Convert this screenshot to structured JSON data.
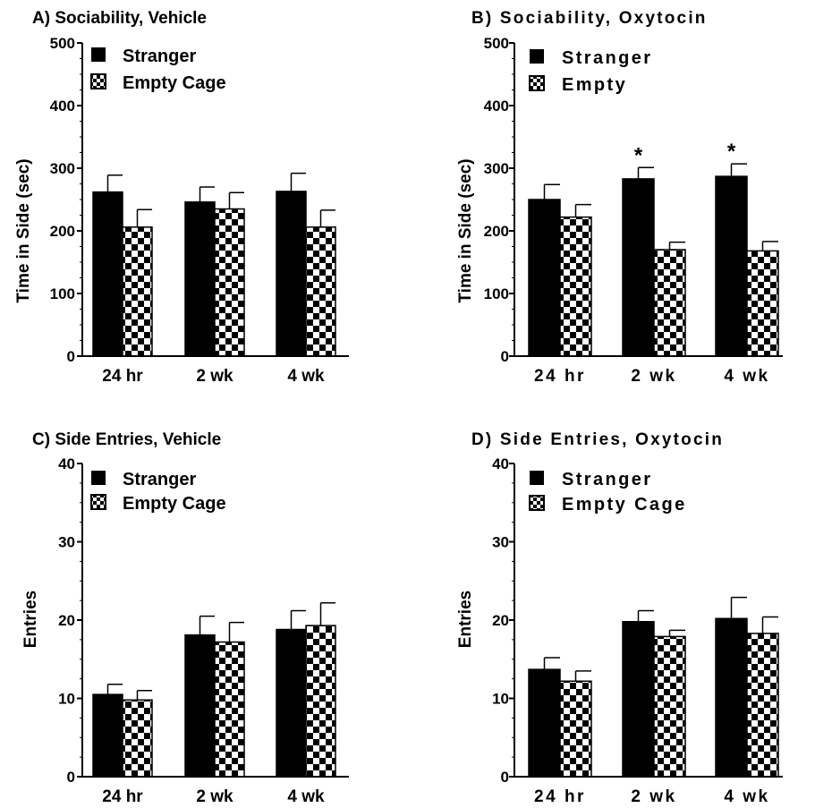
{
  "chart_data": [
    {
      "type": "bar",
      "title": "A) Sociability, Vehicle",
      "ylabel": "Time in Side (sec)",
      "xlabel": "",
      "categories": [
        "24 hr",
        "2 wk",
        "4 wk"
      ],
      "ylim": [
        0,
        500
      ],
      "yticks": [
        "0",
        "100",
        "200",
        "300",
        "400",
        "500"
      ],
      "series": [
        {
          "name": "Stranger",
          "values": [
            262,
            246,
            263
          ],
          "errors": [
            27,
            24,
            29
          ]
        },
        {
          "name": "Empty Cage",
          "values": [
            206,
            235,
            206
          ],
          "errors": [
            28,
            26,
            27
          ]
        }
      ],
      "annotations": [],
      "legend_position": "top-left",
      "grid": false
    },
    {
      "type": "bar",
      "title": "B) Sociability, Oxytocin",
      "ylabel": "Time in Side (sec)",
      "xlabel": "",
      "categories": [
        "24 hr",
        "2 wk",
        "4 wk"
      ],
      "ylim": [
        0,
        500
      ],
      "yticks": [
        "0",
        "100",
        "200",
        "300",
        "400",
        "500"
      ],
      "series": [
        {
          "name": "Stranger",
          "values": [
            250,
            283,
            287
          ],
          "errors": [
            24,
            18,
            20
          ]
        },
        {
          "name": "Empty",
          "values": [
            222,
            170,
            168
          ],
          "errors": [
            20,
            12,
            15
          ]
        }
      ],
      "annotations": [
        {
          "text": "*",
          "category": "2 wk",
          "series": "Stranger"
        },
        {
          "text": "*",
          "category": "4 wk",
          "series": "Stranger"
        }
      ],
      "legend_position": "top-left",
      "grid": false
    },
    {
      "type": "bar",
      "title": "C) Side Entries, Vehicle",
      "ylabel": "Entries",
      "xlabel": "",
      "categories": [
        "24 hr",
        "2 wk",
        "4 wk"
      ],
      "ylim": [
        0,
        40
      ],
      "yticks": [
        "0",
        "10",
        "20",
        "30",
        "40"
      ],
      "series": [
        {
          "name": "Stranger",
          "values": [
            10.5,
            18.1,
            18.8
          ],
          "errors": [
            1.3,
            2.4,
            2.4
          ]
        },
        {
          "name": "Empty Cage",
          "values": [
            9.8,
            17.2,
            19.3
          ],
          "errors": [
            1.2,
            2.5,
            2.9
          ]
        }
      ],
      "annotations": [],
      "legend_position": "top-left",
      "grid": false
    },
    {
      "type": "bar",
      "title": "D) Side Entries, Oxytocin",
      "ylabel": "Entries",
      "xlabel": "",
      "categories": [
        "24 hr",
        "2 wk",
        "4 wk"
      ],
      "ylim": [
        0,
        40
      ],
      "yticks": [
        "0",
        "10",
        "20",
        "30",
        "40"
      ],
      "series": [
        {
          "name": "Stranger",
          "values": [
            13.7,
            19.8,
            20.2
          ],
          "errors": [
            1.5,
            1.4,
            2.7
          ]
        },
        {
          "name": "Empty Cage",
          "values": [
            12.2,
            17.9,
            18.3
          ],
          "errors": [
            1.3,
            0.8,
            2.1
          ]
        }
      ],
      "annotations": [],
      "legend_position": "top-left",
      "grid": false
    }
  ],
  "colors": {
    "stranger_fill": "#000000",
    "empty_fill": "#ffffff",
    "checker": "#000000",
    "axis": "#000000"
  }
}
